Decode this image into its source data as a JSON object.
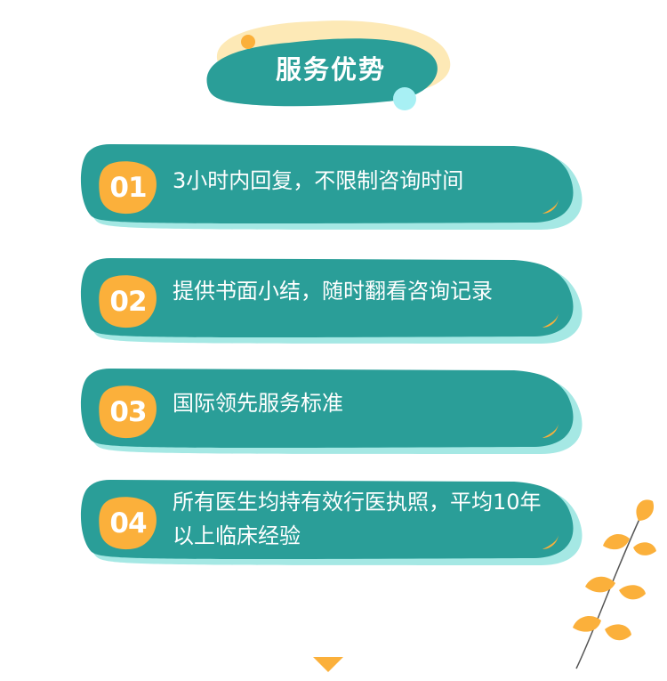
{
  "title": "服务优势",
  "items": [
    {
      "num": "01",
      "text": "3小时内回复，不限制咨询时间"
    },
    {
      "num": "02",
      "text": "提供书面小结，随时翻看咨询记录"
    },
    {
      "num": "03",
      "text": "国际领先服务标准"
    },
    {
      "num": "04",
      "text": "所有医生均持有效行医执照，平均10年以上临床经验"
    }
  ],
  "colors": {
    "teal": "#2a9e98",
    "teal_shadow": "#a5e8e4",
    "orange": "#fbb03b",
    "cream": "#fde9b6",
    "cyan_dot": "#a8f0f4"
  },
  "icons": [
    "leaf-icon",
    "branch-decoration",
    "down-arrow-icon"
  ]
}
